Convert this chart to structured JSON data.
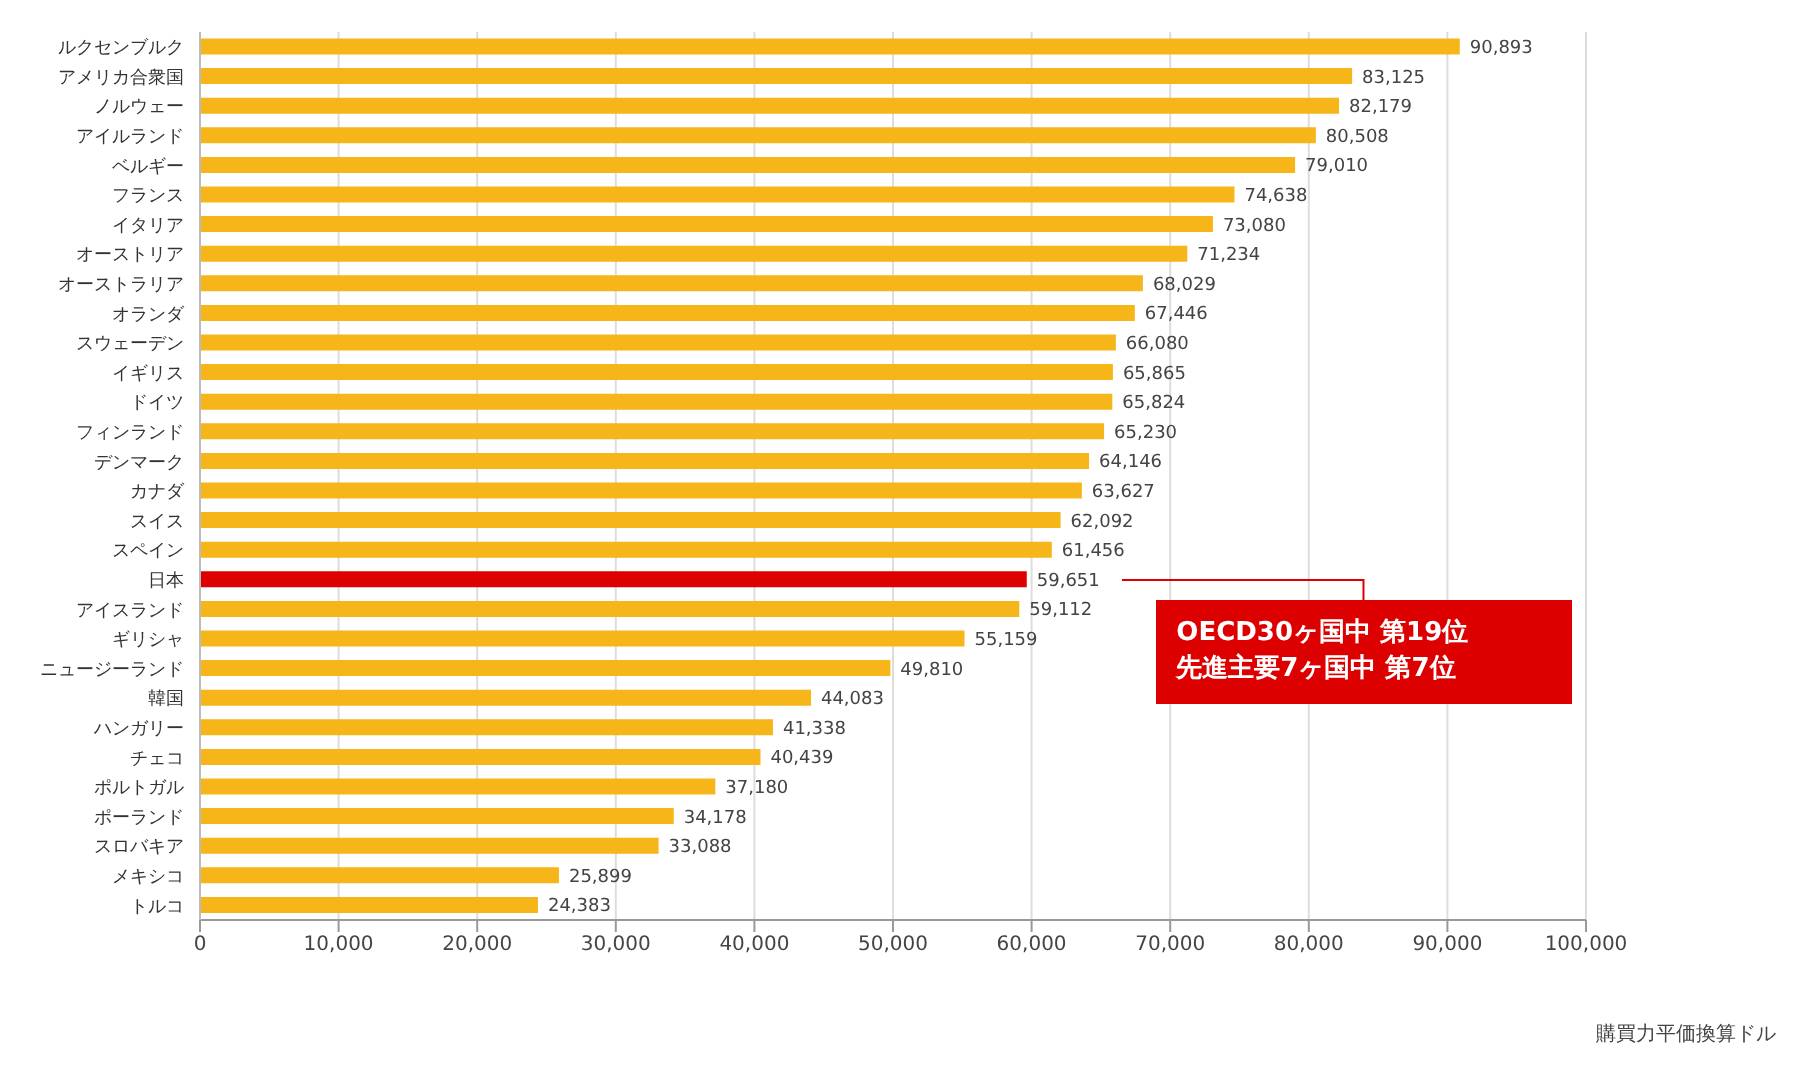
{
  "chart_data": {
    "type": "bar",
    "orientation": "horizontal",
    "xlabel": "購買力平価換算ドル",
    "categories": [
      "ルクセンブルク",
      "アメリカ合衆国",
      "ノルウェー",
      "アイルランド",
      "ベルギー",
      "フランス",
      "イタリア",
      "オーストリア",
      "オーストラリア",
      "オランダ",
      "スウェーデン",
      "イギリス",
      "ドイツ",
      "フィンランド",
      "デンマーク",
      "カナダ",
      "スイス",
      "スペイン",
      "日本",
      "アイスランド",
      "ギリシャ",
      "ニュージーランド",
      "韓国",
      "ハンガリー",
      "チェコ",
      "ポルトガル",
      "ポーランド",
      "スロバキア",
      "メキシコ",
      "トルコ"
    ],
    "values": [
      90893,
      83125,
      82179,
      80508,
      79010,
      74638,
      73080,
      71234,
      68029,
      67446,
      66080,
      65865,
      65824,
      65230,
      64146,
      63627,
      62092,
      61456,
      59651,
      59112,
      55159,
      49810,
      44083,
      41338,
      40439,
      37180,
      34178,
      33088,
      25899,
      24383
    ],
    "value_labels": [
      "90,893",
      "83,125",
      "82,179",
      "80,508",
      "79,010",
      "74,638",
      "73,080",
      "71,234",
      "68,029",
      "67,446",
      "66,080",
      "65,865",
      "65,824",
      "65,230",
      "64,146",
      "63,627",
      "62,092",
      "61,456",
      "59,651",
      "59,112",
      "55,159",
      "49,810",
      "44,083",
      "41,338",
      "40,439",
      "37,180",
      "34,178",
      "33,088",
      "25,899",
      "24,383"
    ],
    "colors": [
      "#f6b519",
      "#f6b519",
      "#f6b519",
      "#f6b519",
      "#f6b519",
      "#f6b519",
      "#f6b519",
      "#f6b519",
      "#f6b519",
      "#f6b519",
      "#f6b519",
      "#f6b519",
      "#f6b519",
      "#f6b519",
      "#f6b519",
      "#f6b519",
      "#f6b519",
      "#f6b519",
      "#dd0000",
      "#f6b519",
      "#f6b519",
      "#f6b519",
      "#f6b519",
      "#f6b519",
      "#f6b519",
      "#f6b519",
      "#f6b519",
      "#f6b519",
      "#f6b519",
      "#f6b519"
    ],
    "xlim": [
      0,
      100000
    ],
    "xticks": [
      {
        "value": 0,
        "label": "0"
      },
      {
        "value": 10000,
        "label": "10,000"
      },
      {
        "value": 20000,
        "label": "20,000"
      },
      {
        "value": 30000,
        "label": "30,000"
      },
      {
        "value": 40000,
        "label": "40,000"
      },
      {
        "value": 50000,
        "label": "50,000"
      },
      {
        "value": 60000,
        "label": "60,000"
      },
      {
        "value": 70000,
        "label": "70,000"
      },
      {
        "value": 80000,
        "label": "80,000"
      },
      {
        "value": 90000,
        "label": "90,000"
      },
      {
        "value": 100000,
        "label": "100,000"
      }
    ],
    "grid": "x",
    "annotations": [
      "OECD30ヶ国中 第19位",
      "先進主要7ヶ国中 第7位"
    ]
  }
}
